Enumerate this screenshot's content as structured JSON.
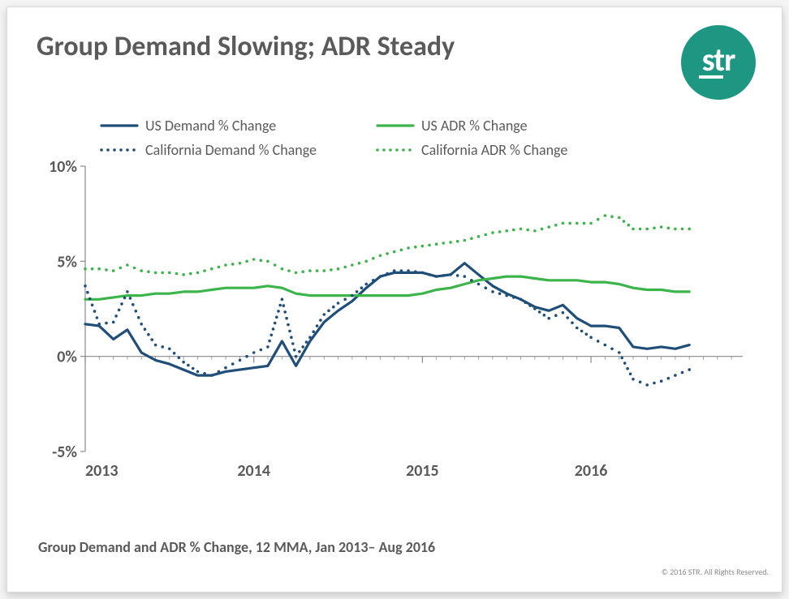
{
  "title": "Group Demand Slowing; ADR Steady",
  "subtitle": "Group Demand and ADR % Change, 12 MMA,  Jan 2013– Aug 2016",
  "copyright": "© 2016 STR. All Rights Reserved.",
  "logo": {
    "text": "str"
  },
  "chart": {
    "type": "line",
    "background_color": "#ffffff",
    "axis_color": "#8a8a8a",
    "text_color": "#5a5a5a",
    "title_fontsize": 34,
    "axis_label_fontsize": 20,
    "legend_fontsize": 18,
    "ylim": [
      -5,
      10
    ],
    "yticks": [
      -5,
      0,
      5,
      10
    ],
    "ytick_labels": [
      "-5%",
      "0%",
      "5%",
      "10%"
    ],
    "xlim": [
      2013,
      2016.9
    ],
    "xtick_years": [
      2013,
      2014,
      2015,
      2016
    ],
    "xtick_labels": [
      "2013",
      "2014",
      "2015",
      "2016"
    ],
    "x_minor_step_months": 1,
    "x": [
      2013.0,
      2013.083,
      2013.167,
      2013.25,
      2013.333,
      2013.417,
      2013.5,
      2013.583,
      2013.667,
      2013.75,
      2013.833,
      2013.917,
      2014.0,
      2014.083,
      2014.167,
      2014.25,
      2014.333,
      2014.417,
      2014.5,
      2014.583,
      2014.667,
      2014.75,
      2014.833,
      2014.917,
      2015.0,
      2015.083,
      2015.167,
      2015.25,
      2015.333,
      2015.417,
      2015.5,
      2015.583,
      2015.667,
      2015.75,
      2015.833,
      2015.917,
      2016.0,
      2016.083,
      2016.167,
      2016.25,
      2016.333,
      2016.417,
      2016.5,
      2016.583
    ],
    "series": [
      {
        "name": "US Demand % Change",
        "color": "#1f4e79",
        "style": "solid",
        "line_width": 3.2,
        "y": [
          1.7,
          1.6,
          0.9,
          1.4,
          0.2,
          -0.2,
          -0.4,
          -0.7,
          -1.0,
          -1.0,
          -0.8,
          -0.7,
          -0.6,
          -0.5,
          0.8,
          -0.5,
          0.8,
          1.8,
          2.4,
          2.9,
          3.6,
          4.2,
          4.4,
          4.4,
          4.4,
          4.2,
          4.3,
          4.9,
          4.3,
          3.7,
          3.3,
          3.0,
          2.6,
          2.4,
          2.7,
          2.0,
          1.6,
          1.6,
          1.5,
          0.5,
          0.4,
          0.5,
          0.4,
          0.6
        ]
      },
      {
        "name": "US ADR % Change",
        "color": "#3bb44a",
        "style": "solid",
        "line_width": 3.2,
        "y": [
          3.0,
          3.0,
          3.1,
          3.2,
          3.2,
          3.3,
          3.3,
          3.4,
          3.4,
          3.5,
          3.6,
          3.6,
          3.6,
          3.7,
          3.6,
          3.3,
          3.2,
          3.2,
          3.2,
          3.2,
          3.2,
          3.2,
          3.2,
          3.2,
          3.3,
          3.5,
          3.6,
          3.8,
          4.0,
          4.1,
          4.2,
          4.2,
          4.1,
          4.0,
          4.0,
          4.0,
          3.9,
          3.9,
          3.8,
          3.6,
          3.5,
          3.5,
          3.4,
          3.4
        ]
      },
      {
        "name": "California Demand % Change",
        "color": "#1f4e79",
        "style": "dotted",
        "line_width": 3.0,
        "dot_radius": 1.8,
        "y": [
          3.7,
          1.7,
          1.8,
          3.4,
          1.7,
          0.6,
          0.4,
          -0.3,
          -0.8,
          -1.0,
          -0.6,
          -0.2,
          0.2,
          0.5,
          3.0,
          0.0,
          1.0,
          2.2,
          2.8,
          3.2,
          3.8,
          4.2,
          4.5,
          4.5,
          4.4,
          4.2,
          4.3,
          4.2,
          3.8,
          3.4,
          3.2,
          3.0,
          2.5,
          2.0,
          2.3,
          1.5,
          1.0,
          0.6,
          0.2,
          -1.2,
          -1.5,
          -1.3,
          -1.0,
          -0.7
        ]
      },
      {
        "name": "California ADR % Change",
        "color": "#3bb44a",
        "style": "dotted",
        "line_width": 3.0,
        "dot_radius": 1.8,
        "y": [
          4.6,
          4.6,
          4.5,
          4.8,
          4.5,
          4.4,
          4.4,
          4.3,
          4.4,
          4.6,
          4.8,
          4.9,
          5.1,
          5.0,
          4.6,
          4.4,
          4.5,
          4.5,
          4.6,
          4.8,
          5.0,
          5.3,
          5.5,
          5.7,
          5.8,
          5.9,
          6.0,
          6.1,
          6.3,
          6.5,
          6.6,
          6.7,
          6.6,
          6.8,
          7.0,
          7.0,
          7.0,
          7.4,
          7.3,
          6.7,
          6.7,
          6.8,
          6.7,
          6.7
        ]
      }
    ],
    "legend": {
      "layout": "grid-2x2",
      "position_top_left": true,
      "items": [
        {
          "series": 0,
          "label": "US Demand % Change"
        },
        {
          "series": 1,
          "label": "US ADR % Change"
        },
        {
          "series": 2,
          "label": "California Demand % Change"
        },
        {
          "series": 3,
          "label": "California ADR % Change"
        }
      ]
    }
  }
}
